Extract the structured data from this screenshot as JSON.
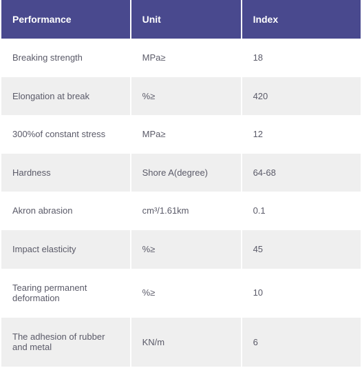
{
  "table": {
    "header_bg": "#49498e",
    "header_text_color": "#ffffff",
    "row_odd_bg": "#ffffff",
    "row_even_bg": "#efefef",
    "cell_text_color": "#5a5a68",
    "header_fontsize": 14,
    "cell_fontsize": 13,
    "columns": [
      {
        "label": "Performance",
        "width": 189
      },
      {
        "label": "Unit",
        "width": 161
      },
      {
        "label": "Index",
        "width": 176
      }
    ],
    "rows": [
      {
        "performance": "Breaking strength",
        "unit": "MPa≥",
        "index": "18"
      },
      {
        "performance": "Elongation at break",
        "unit": "%≥",
        "index": "420"
      },
      {
        "performance": "300%of constant stress",
        "unit": "MPa≥",
        "index": "12"
      },
      {
        "performance": "Hardness",
        "unit": "Shore A(degree)",
        "index": "64-68"
      },
      {
        "performance": "Akron abrasion",
        "unit": "cm³/1.61km",
        "index": "0.1"
      },
      {
        "performance": "Impact elasticity",
        "unit": "%≥",
        "index": "45"
      },
      {
        "performance": "Tearing permanent deformation",
        "unit": "%≥",
        "index": "10"
      },
      {
        "performance": "The adhesion of rubber and metal",
        "unit": "KN/m",
        "index": "6"
      }
    ]
  }
}
